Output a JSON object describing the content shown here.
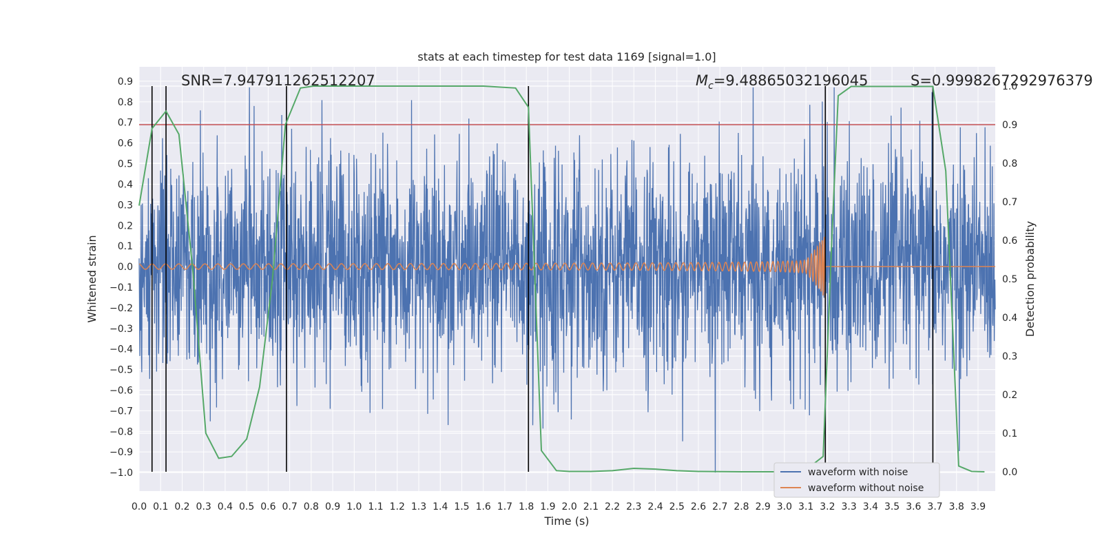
{
  "chart_data": {
    "type": "line",
    "title": "stats at each timestep for test data 1169 [signal=1.0]",
    "xlabel": "Time (s)",
    "ylabel": "Whitened strain",
    "ylabel_right": "Detection probability",
    "xlim": [
      0.0,
      3.98
    ],
    "ylim": [
      -1.09,
      0.97
    ],
    "ylim_right": [
      -0.05,
      1.05
    ],
    "x_ticks": [
      "0.0",
      "0.1",
      "0.2",
      "0.3",
      "0.4",
      "0.5",
      "0.6",
      "0.7",
      "0.8",
      "0.9",
      "1.0",
      "1.1",
      "1.2",
      "1.3",
      "1.4",
      "1.5",
      "1.6",
      "1.7",
      "1.8",
      "1.9",
      "2.0",
      "2.1",
      "2.2",
      "2.3",
      "2.4",
      "2.5",
      "2.6",
      "2.7",
      "2.8",
      "2.9",
      "3.0",
      "3.1",
      "3.2",
      "3.3",
      "3.4",
      "3.5",
      "3.6",
      "3.7",
      "3.8",
      "3.9"
    ],
    "y_ticks": [
      "0.9",
      "0.8",
      "0.7",
      "0.6",
      "0.5",
      "0.4",
      "0.3",
      "0.2",
      "0.1",
      "0.0",
      "−0.1",
      "−0.2",
      "−0.3",
      "−0.4",
      "−0.5",
      "−0.6",
      "−0.7",
      "−0.8",
      "−0.9",
      "−1.0"
    ],
    "y_ticks_right": [
      "1.0",
      "0.9",
      "0.8",
      "0.7",
      "0.6",
      "0.5",
      "0.4",
      "0.3",
      "0.2",
      "0.1",
      "0.0"
    ],
    "annotations": {
      "snr": "SNR=7.947911262512207",
      "mc_symbol": "M",
      "mc_sub": "c",
      "mc_value": "=9.48865032196045",
      "s": "S=0.9998267292976379"
    },
    "threshold_right": 0.9,
    "vertical_lines_x": [
      0.06,
      0.125,
      0.685,
      1.81,
      3.19,
      3.69
    ],
    "series": [
      {
        "name": "waveform with noise",
        "color": "#4c72b0",
        "description": "noisy whitened strain, roughly within -1.0 to 0.87"
      },
      {
        "name": "waveform without noise",
        "color": "#dd8452",
        "description": "chirp signal growing in amplitude until merger at ~3.2 s, then flat at 0"
      },
      {
        "name": "detection probability",
        "color": "#55a868",
        "axis": "right",
        "x": [
          0.0,
          0.06,
          0.125,
          0.185,
          0.25,
          0.31,
          0.37,
          0.43,
          0.5,
          0.56,
          0.62,
          0.68,
          0.75,
          0.81,
          0.87,
          1.0,
          1.2,
          1.4,
          1.6,
          1.75,
          1.81,
          1.87,
          1.94,
          2.0,
          2.1,
          2.2,
          2.3,
          2.4,
          2.5,
          2.6,
          2.8,
          3.0,
          3.1,
          3.18,
          3.22,
          3.25,
          3.31,
          3.4,
          3.5,
          3.6,
          3.69,
          3.75,
          3.81,
          3.87,
          3.93
        ],
        "values": [
          0.69,
          0.89,
          0.935,
          0.875,
          0.52,
          0.1,
          0.035,
          0.04,
          0.085,
          0.22,
          0.5,
          0.9,
          0.995,
          1.0,
          1.0,
          1.0,
          1.0,
          1.0,
          1.0,
          0.995,
          0.945,
          0.055,
          0.003,
          0.001,
          0.001,
          0.003,
          0.009,
          0.007,
          0.003,
          0.001,
          0.0,
          0.0,
          0.005,
          0.04,
          0.6,
          0.975,
          0.999,
          0.999,
          0.999,
          0.999,
          0.999,
          0.78,
          0.015,
          0.001,
          0.0
        ]
      }
    ],
    "legend": {
      "position": "bottom-right",
      "entries": [
        {
          "label": "waveform with noise",
          "color": "#4c72b0"
        },
        {
          "label": "waveform without noise",
          "color": "#dd8452"
        }
      ]
    }
  },
  "colors": {
    "axes_bg": "#eaeaf2",
    "grid": "#ffffff",
    "threshold": "#c44e52",
    "vline": "#000000"
  }
}
